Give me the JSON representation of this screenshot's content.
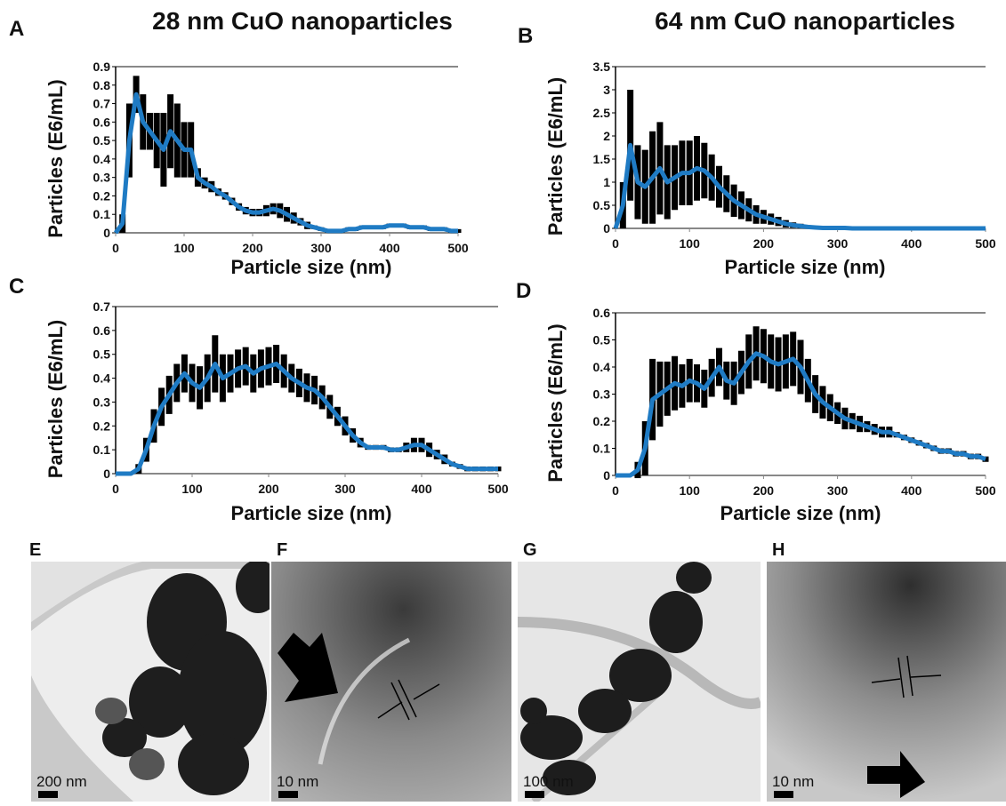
{
  "chart_data": [
    {
      "type": "line",
      "panel": "A",
      "title": "28 nm CuO nanoparticles",
      "y_label": "Particles (E6/mL)",
      "x_label": "Particle size (nm)",
      "xlim": [
        0,
        500
      ],
      "xticks": [
        0,
        100,
        200,
        300,
        400,
        500
      ],
      "ylim": [
        0,
        0.9
      ],
      "yticks": [
        0,
        0.1,
        0.2,
        0.3,
        0.4,
        0.5,
        0.6,
        0.7,
        0.8,
        0.9
      ],
      "x": [
        0,
        10,
        20,
        30,
        40,
        50,
        60,
        70,
        80,
        90,
        100,
        110,
        120,
        130,
        140,
        150,
        160,
        170,
        180,
        190,
        200,
        210,
        220,
        230,
        240,
        250,
        260,
        270,
        280,
        290,
        300,
        310,
        320,
        330,
        340,
        350,
        360,
        370,
        380,
        390,
        400,
        410,
        420,
        430,
        440,
        450,
        460,
        470,
        480,
        490,
        500
      ],
      "series": [
        {
          "color": "#1f7bc4",
          "error_color": "#000000",
          "values": [
            0,
            0.05,
            0.5,
            0.75,
            0.6,
            0.55,
            0.5,
            0.45,
            0.55,
            0.5,
            0.45,
            0.45,
            0.3,
            0.27,
            0.25,
            0.22,
            0.2,
            0.17,
            0.14,
            0.12,
            0.11,
            0.11,
            0.12,
            0.13,
            0.12,
            0.1,
            0.08,
            0.06,
            0.04,
            0.03,
            0.02,
            0.01,
            0.01,
            0.01,
            0.02,
            0.02,
            0.03,
            0.03,
            0.03,
            0.03,
            0.04,
            0.04,
            0.04,
            0.03,
            0.03,
            0.03,
            0.02,
            0.02,
            0.02,
            0.01,
            0.01
          ],
          "errors": [
            0,
            0.05,
            0.2,
            0.1,
            0.15,
            0.1,
            0.15,
            0.2,
            0.2,
            0.2,
            0.15,
            0.15,
            0.05,
            0.03,
            0.03,
            0.02,
            0.02,
            0.02,
            0.02,
            0.02,
            0.02,
            0.02,
            0.03,
            0.03,
            0.04,
            0.04,
            0.03,
            0.02,
            0.02,
            0.01,
            0.01,
            0.01,
            0.01,
            0.01,
            0.01,
            0.01,
            0.01,
            0.01,
            0.01,
            0.01,
            0.01,
            0.01,
            0.01,
            0.01,
            0.01,
            0.01,
            0.01,
            0.01,
            0.01,
            0.01,
            0.01
          ]
        }
      ]
    },
    {
      "type": "line",
      "panel": "B",
      "title": "64 nm CuO nanoparticles",
      "y_label": "Particles (E6/mL)",
      "x_label": "Particle size (nm)",
      "xlim": [
        0,
        500
      ],
      "xticks": [
        0,
        100,
        200,
        300,
        400,
        500
      ],
      "ylim": [
        0,
        3.5
      ],
      "yticks": [
        0,
        0.5,
        1,
        1.5,
        2,
        2.5,
        3,
        3.5
      ],
      "x": [
        0,
        10,
        20,
        30,
        40,
        50,
        60,
        70,
        80,
        90,
        100,
        110,
        120,
        130,
        140,
        150,
        160,
        170,
        180,
        190,
        200,
        210,
        220,
        230,
        240,
        250,
        260,
        270,
        280,
        290,
        300,
        310,
        320,
        330,
        340,
        350,
        360,
        370,
        380,
        390,
        400,
        410,
        420,
        430,
        440,
        450,
        460,
        470,
        480,
        490,
        500
      ],
      "series": [
        {
          "color": "#1f7bc4",
          "error_color": "#000000",
          "values": [
            0,
            0.5,
            1.8,
            1.0,
            0.9,
            1.1,
            1.3,
            1.0,
            1.1,
            1.2,
            1.2,
            1.3,
            1.25,
            1.1,
            0.9,
            0.75,
            0.6,
            0.5,
            0.4,
            0.3,
            0.25,
            0.2,
            0.15,
            0.1,
            0.07,
            0.05,
            0.03,
            0.02,
            0.01,
            0.01,
            0.01,
            0.01,
            0,
            0,
            0,
            0,
            0,
            0,
            0,
            0,
            0,
            0,
            0,
            0,
            0,
            0,
            0,
            0,
            0,
            0,
            0
          ],
          "errors": [
            0,
            0.5,
            1.2,
            0.8,
            0.8,
            1,
            1,
            0.8,
            0.7,
            0.7,
            0.7,
            0.7,
            0.6,
            0.5,
            0.45,
            0.4,
            0.35,
            0.3,
            0.25,
            0.2,
            0.15,
            0.12,
            0.1,
            0.08,
            0.06,
            0.05,
            0.03,
            0.02,
            0.01,
            0,
            0,
            0,
            0,
            0,
            0,
            0,
            0,
            0,
            0,
            0,
            0,
            0,
            0,
            0,
            0,
            0,
            0,
            0,
            0,
            0,
            0
          ]
        }
      ]
    },
    {
      "type": "line",
      "panel": "C",
      "y_label": "Particles (E6/mL)",
      "x_label": "Particle size (nm)",
      "xlim": [
        0,
        500
      ],
      "xticks": [
        0,
        100,
        200,
        300,
        400,
        500
      ],
      "ylim": [
        0,
        0.7
      ],
      "yticks": [
        0,
        0.1,
        0.2,
        0.3,
        0.4,
        0.5,
        0.6,
        0.7
      ],
      "x": [
        0,
        10,
        20,
        30,
        40,
        50,
        60,
        70,
        80,
        90,
        100,
        110,
        120,
        130,
        140,
        150,
        160,
        170,
        180,
        190,
        200,
        210,
        220,
        230,
        240,
        250,
        260,
        270,
        280,
        290,
        300,
        310,
        320,
        330,
        340,
        350,
        360,
        370,
        380,
        390,
        400,
        410,
        420,
        430,
        440,
        450,
        460,
        470,
        480,
        490,
        500
      ],
      "series": [
        {
          "color": "#1f7bc4",
          "error_color": "#000000",
          "values": [
            0,
            0,
            0,
            0.02,
            0.1,
            0.2,
            0.28,
            0.33,
            0.38,
            0.42,
            0.38,
            0.36,
            0.4,
            0.46,
            0.4,
            0.42,
            0.44,
            0.45,
            0.42,
            0.44,
            0.45,
            0.46,
            0.43,
            0.4,
            0.38,
            0.36,
            0.35,
            0.32,
            0.28,
            0.24,
            0.2,
            0.16,
            0.13,
            0.11,
            0.11,
            0.11,
            0.1,
            0.1,
            0.11,
            0.12,
            0.12,
            0.1,
            0.08,
            0.06,
            0.04,
            0.03,
            0.02,
            0.02,
            0.02,
            0.02,
            0.02
          ],
          "errors": [
            0,
            0,
            0,
            0.02,
            0.05,
            0.07,
            0.08,
            0.08,
            0.08,
            0.08,
            0.08,
            0.09,
            0.1,
            0.12,
            0.1,
            0.08,
            0.08,
            0.08,
            0.08,
            0.08,
            0.08,
            0.08,
            0.07,
            0.06,
            0.06,
            0.06,
            0.06,
            0.05,
            0.05,
            0.04,
            0.04,
            0.03,
            0.02,
            0.01,
            0.01,
            0.01,
            0.01,
            0.01,
            0.02,
            0.03,
            0.03,
            0.03,
            0.02,
            0.02,
            0.01,
            0.01,
            0.01,
            0.01,
            0.01,
            0.01,
            0.01
          ]
        }
      ]
    },
    {
      "type": "line",
      "panel": "D",
      "y_label": "Particles (E6/mL)",
      "x_label": "Particle size (nm)",
      "xlim": [
        0,
        500
      ],
      "xticks": [
        0,
        100,
        200,
        300,
        400,
        500
      ],
      "ylim": [
        0,
        0.6
      ],
      "yticks": [
        0,
        0.1,
        0.2,
        0.3,
        0.4,
        0.5,
        0.6
      ],
      "x": [
        0,
        10,
        20,
        30,
        40,
        50,
        60,
        70,
        80,
        90,
        100,
        110,
        120,
        130,
        140,
        150,
        160,
        170,
        180,
        190,
        200,
        210,
        220,
        230,
        240,
        250,
        260,
        270,
        280,
        290,
        300,
        310,
        320,
        330,
        340,
        350,
        360,
        370,
        380,
        390,
        400,
        410,
        420,
        430,
        440,
        450,
        460,
        470,
        480,
        490,
        500
      ],
      "series": [
        {
          "color": "#1f7bc4",
          "error_color": "#000000",
          "values": [
            0,
            0,
            0,
            0.02,
            0.1,
            0.28,
            0.3,
            0.32,
            0.34,
            0.33,
            0.35,
            0.34,
            0.32,
            0.36,
            0.4,
            0.35,
            0.34,
            0.38,
            0.42,
            0.45,
            0.44,
            0.42,
            0.41,
            0.42,
            0.43,
            0.4,
            0.35,
            0.3,
            0.27,
            0.25,
            0.23,
            0.21,
            0.2,
            0.19,
            0.18,
            0.17,
            0.16,
            0.16,
            0.15,
            0.14,
            0.13,
            0.12,
            0.11,
            0.1,
            0.09,
            0.09,
            0.08,
            0.08,
            0.07,
            0.07,
            0.06
          ],
          "errors": [
            0,
            0,
            0,
            0.03,
            0.1,
            0.15,
            0.12,
            0.1,
            0.1,
            0.08,
            0.08,
            0.07,
            0.07,
            0.07,
            0.07,
            0.07,
            0.08,
            0.08,
            0.1,
            0.1,
            0.1,
            0.1,
            0.1,
            0.1,
            0.1,
            0.1,
            0.08,
            0.07,
            0.06,
            0.05,
            0.04,
            0.04,
            0.03,
            0.03,
            0.02,
            0.02,
            0.02,
            0.02,
            0.01,
            0.01,
            0.01,
            0.01,
            0.01,
            0.01,
            0.01,
            0.01,
            0.01,
            0.01,
            0.01,
            0.01,
            0.01
          ]
        }
      ]
    }
  ],
  "images": [
    {
      "panel": "E",
      "scale_bar": "200 nm"
    },
    {
      "panel": "F",
      "scale_bar": "10 nm"
    },
    {
      "panel": "G",
      "scale_bar": "100 nm"
    },
    {
      "panel": "H",
      "scale_bar": "10 nm"
    }
  ]
}
